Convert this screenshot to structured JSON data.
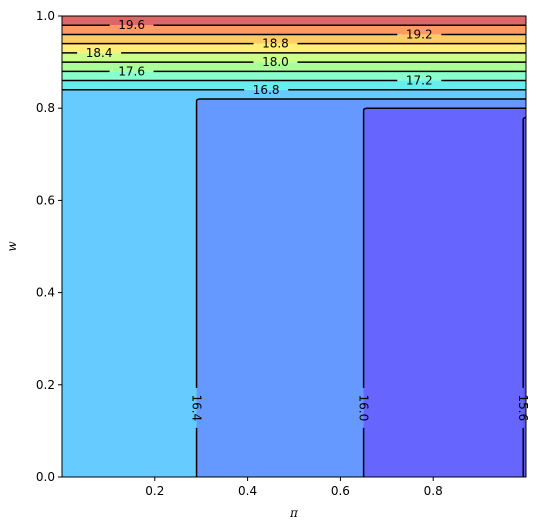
{
  "chart_data": {
    "type": "contour",
    "xlabel": "π",
    "ylabel": "w",
    "xlim": [
      0.0,
      1.0
    ],
    "ylim": [
      0.0,
      1.0
    ],
    "xticks": [
      "0.2",
      "0.4",
      "0.6",
      "0.8"
    ],
    "yticks": [
      "0.0",
      "0.2",
      "0.4",
      "0.6",
      "0.8",
      "1.0"
    ],
    "grid": false,
    "legend": false,
    "colormap": "jet",
    "fill_regions": [
      {
        "x0": 0.0,
        "x1": 1.0,
        "y0": 0.0,
        "y1": 0.84,
        "color": "#66ccff"
      },
      {
        "x0": 0.29,
        "x1": 1.0,
        "y0": 0.0,
        "y1": 0.82,
        "color": "#6699ff"
      },
      {
        "x0": 0.65,
        "x1": 1.0,
        "y0": 0.0,
        "y1": 0.8,
        "color": "#6666ff"
      },
      {
        "x0": 0.994,
        "x1": 1.0,
        "y0": 0.0,
        "y1": 0.78,
        "color": "#5a5aee"
      },
      {
        "x0": 0.0,
        "x1": 1.0,
        "y0": 0.84,
        "y1": 0.86,
        "color": "#66eeee"
      },
      {
        "x0": 0.0,
        "x1": 1.0,
        "y0": 0.86,
        "y1": 0.88,
        "color": "#88ffcc"
      },
      {
        "x0": 0.0,
        "x1": 1.0,
        "y0": 0.88,
        "y1": 0.9,
        "color": "#aaff99"
      },
      {
        "x0": 0.0,
        "x1": 1.0,
        "y0": 0.9,
        "y1": 0.92,
        "color": "#ccff88"
      },
      {
        "x0": 0.0,
        "x1": 1.0,
        "y0": 0.92,
        "y1": 0.94,
        "color": "#ffee77"
      },
      {
        "x0": 0.0,
        "x1": 1.0,
        "y0": 0.94,
        "y1": 0.96,
        "color": "#ffcc66"
      },
      {
        "x0": 0.0,
        "x1": 1.0,
        "y0": 0.96,
        "y1": 0.98,
        "color": "#ff9966"
      },
      {
        "x0": 0.0,
        "x1": 1.0,
        "y0": 0.98,
        "y1": 1.0,
        "color": "#dd6666"
      }
    ],
    "horizontal_levels": [
      {
        "label": "16.8",
        "y": 0.84,
        "label_x": 0.44
      },
      {
        "label": "17.2",
        "y": 0.86,
        "label_x": 0.77
      },
      {
        "label": "17.6",
        "y": 0.88,
        "label_x": 0.15
      },
      {
        "label": "18.0",
        "y": 0.9,
        "label_x": 0.46
      },
      {
        "label": "18.4",
        "y": 0.92,
        "label_x": 0.08
      },
      {
        "label": "18.8",
        "y": 0.94,
        "label_x": 0.46
      },
      {
        "label": "19.2",
        "y": 0.96,
        "label_x": 0.77
      },
      {
        "label": "19.6",
        "y": 0.98,
        "label_x": 0.15
      }
    ],
    "vertical_levels": [
      {
        "label": "16.4",
        "x": 0.29,
        "y_top": 0.82,
        "label_y": 0.15
      },
      {
        "label": "16.0",
        "x": 0.65,
        "y_top": 0.8,
        "label_y": 0.15
      },
      {
        "label": "15.6",
        "x": 0.994,
        "y_top": 0.78,
        "label_y": 0.15
      }
    ]
  }
}
